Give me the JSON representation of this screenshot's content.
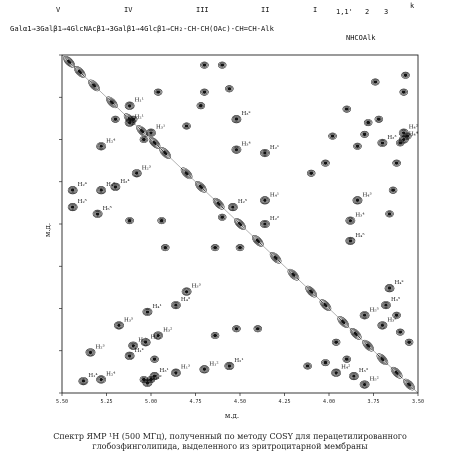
{
  "formula": {
    "residue_numbers": [
      "V",
      "IV",
      "III",
      "II",
      "I",
      "1,1'",
      "2",
      "3"
    ],
    "residue_k": "k",
    "main": "Galα1→3Galβ1→4GlcNAcβ1→3Galβ1→4Glcβ1→CH₂-CH-CH(OAc)-CH=CH-Alk",
    "sub": "NHCOAlk"
  },
  "chart_data": {
    "type": "heatmap",
    "title": "",
    "xlabel": "м.д.",
    "ylabel": "м.д.",
    "x_ticks": [
      "5.50",
      "5.25",
      "5.00",
      "4.75",
      "4.50",
      "4.25",
      "4.00",
      "3.75",
      "3.50"
    ],
    "xlim": [
      5.5,
      3.5
    ],
    "ylim": [
      5.5,
      3.5
    ],
    "diagonal_peaks": [
      5.46,
      5.4,
      5.32,
      5.22,
      5.12,
      5.05,
      4.98,
      4.92,
      4.8,
      4.72,
      4.62,
      4.5,
      4.4,
      4.3,
      4.2,
      4.1,
      4.02,
      3.92,
      3.85,
      3.78,
      3.7,
      3.62,
      3.55
    ],
    "cross_peaks": [
      {
        "x": 5.38,
        "y": 3.57,
        "label": "H₁⁴"
      },
      {
        "x": 5.28,
        "y": 3.58,
        "label": "H₂⁴"
      },
      {
        "x": 5.02,
        "y": 3.56,
        "label": "H₃²"
      },
      {
        "x": 4.98,
        "y": 3.6,
        "label": "H₃¹"
      },
      {
        "x": 4.86,
        "y": 3.62,
        "label": "H₁³"
      },
      {
        "x": 4.7,
        "y": 3.64,
        "label": "H₁²"
      },
      {
        "x": 4.56,
        "y": 3.66,
        "label": "H₂¹"
      },
      {
        "x": 3.96,
        "y": 3.62,
        "label": "H₄²"
      },
      {
        "x": 3.86,
        "y": 3.6,
        "label": "H₅³"
      },
      {
        "x": 3.8,
        "y": 3.55,
        "label": "H₅²"
      },
      {
        "x": 5.34,
        "y": 3.74,
        "label": "H₂³"
      },
      {
        "x": 5.12,
        "y": 3.72,
        "label": "H₁ᵏ"
      },
      {
        "x": 5.1,
        "y": 3.78,
        "label": "H₂ᵏ"
      },
      {
        "x": 5.03,
        "y": 3.8,
        "label": "H₂²"
      },
      {
        "x": 4.96,
        "y": 3.84,
        "label": "H₃²"
      },
      {
        "x": 5.18,
        "y": 3.9,
        "label": "H₃⁵"
      },
      {
        "x": 5.02,
        "y": 3.98,
        "label": "H₄¹"
      },
      {
        "x": 4.86,
        "y": 4.02,
        "label": "H₄³"
      },
      {
        "x": 4.8,
        "y": 4.1,
        "label": "H₃³"
      },
      {
        "x": 4.54,
        "y": 4.6,
        "label": "H₂⁵"
      },
      {
        "x": 4.52,
        "y": 4.94,
        "label": "H₃⁴"
      },
      {
        "x": 3.88,
        "y": 4.4,
        "label": "H₄⁵"
      },
      {
        "x": 3.88,
        "y": 4.52,
        "label": "H₃⁴"
      },
      {
        "x": 3.84,
        "y": 4.64,
        "label": "H₄³"
      },
      {
        "x": 4.36,
        "y": 4.5,
        "label": "H₂²"
      },
      {
        "x": 4.36,
        "y": 4.64,
        "label": "H₄¹"
      },
      {
        "x": 4.36,
        "y": 4.92,
        "label": "H₂¹"
      },
      {
        "x": 5.44,
        "y": 4.6,
        "label": "H₂⁵"
      },
      {
        "x": 5.44,
        "y": 4.7,
        "label": "H₂⁴"
      },
      {
        "x": 5.3,
        "y": 4.56,
        "label": "H₅⁵"
      },
      {
        "x": 5.28,
        "y": 4.7,
        "label": "H₄⁵"
      },
      {
        "x": 5.2,
        "y": 4.72,
        "label": "H₃⁴"
      },
      {
        "x": 5.08,
        "y": 4.8,
        "label": "H₂³"
      },
      {
        "x": 5.28,
        "y": 4.96,
        "label": "H₂⁴"
      },
      {
        "x": 5.0,
        "y": 5.04,
        "label": "H₃¹"
      },
      {
        "x": 5.12,
        "y": 5.1,
        "label": "H₂¹"
      },
      {
        "x": 5.12,
        "y": 5.2,
        "label": "H₁¹"
      },
      {
        "x": 4.52,
        "y": 5.12,
        "label": "H₃ᵏ"
      },
      {
        "x": 3.7,
        "y": 4.98,
        "label": "H₃³"
      },
      {
        "x": 3.58,
        "y": 5.0,
        "label": "H₄⁴"
      },
      {
        "x": 3.58,
        "y": 5.04,
        "label": "H₄²"
      },
      {
        "x": 3.8,
        "y": 3.96,
        "label": "H₅⁵"
      },
      {
        "x": 3.7,
        "y": 3.9,
        "label": "H₃ᵏ"
      },
      {
        "x": 3.68,
        "y": 4.02,
        "label": "H₃⁵"
      },
      {
        "x": 3.66,
        "y": 4.12,
        "label": "H₄ᵏ"
      }
    ],
    "grid": false
  },
  "caption": {
    "line1": "Спектр ЯМР ¹H (500 МГц), полученный по методу COSY для перацетилированного",
    "line2": "глобозфинголипида, выделенного из эритроцитарной мембраны"
  }
}
